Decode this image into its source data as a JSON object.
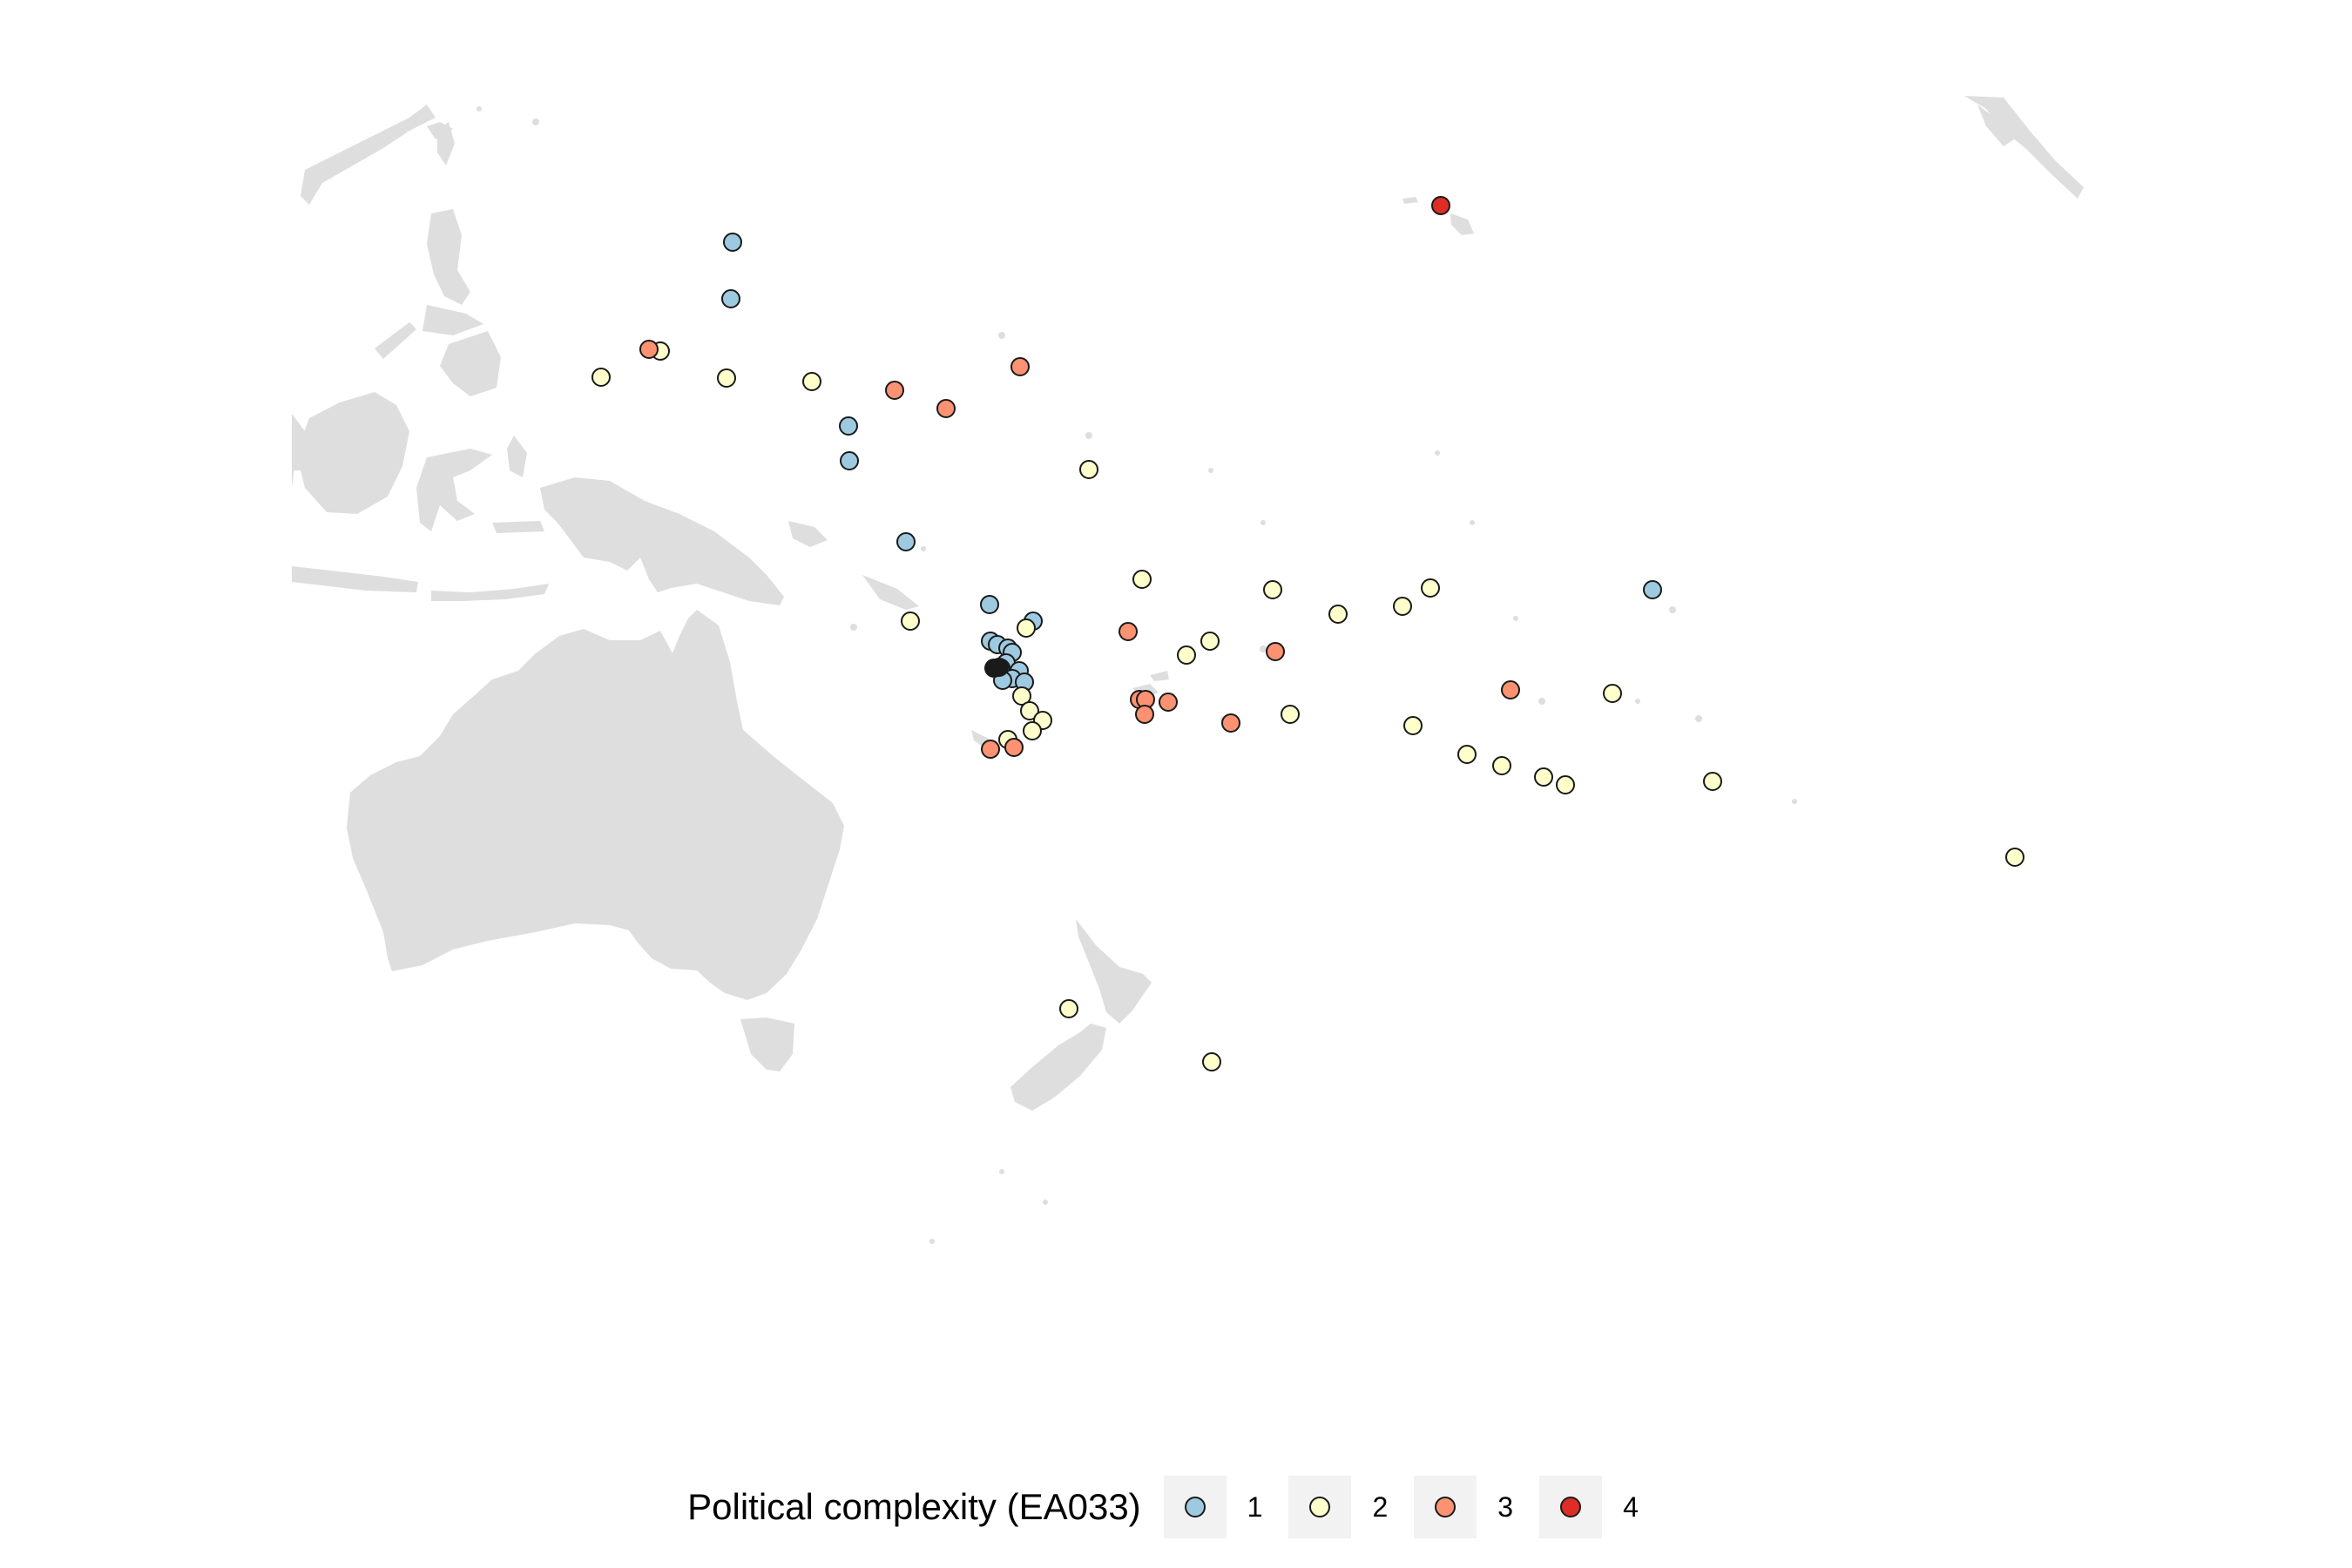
{
  "legend": {
    "title": "Political complexity (EA033)",
    "items": [
      {
        "label": "1",
        "color": "#9ecae1"
      },
      {
        "label": "2",
        "color": "#ffffcc"
      },
      {
        "label": "3",
        "color": "#fc9272"
      },
      {
        "label": "4",
        "color": "#de2d26"
      }
    ]
  },
  "chart_data": {
    "type": "scatter",
    "title": "",
    "xlabel": "",
    "ylabel": "",
    "basemap": "Australia, New Guinea, Indonesia, Philippines, Japan, New Zealand, Pacific islands, Alaska",
    "grid": false,
    "legend_position": "bottom",
    "series": [
      {
        "name": "1",
        "color": "#9ecae1",
        "points": [
          [
            841,
            278
          ],
          [
            839,
            343
          ],
          [
            974,
            489
          ],
          [
            975,
            529
          ],
          [
            1040,
            622
          ],
          [
            1136,
            694
          ],
          [
            1186,
            713
          ],
          [
            1137,
            736
          ],
          [
            1145,
            740
          ],
          [
            1157,
            744
          ],
          [
            1162,
            749
          ],
          [
            1155,
            761
          ],
          [
            1170,
            770
          ],
          [
            1149,
            767
          ],
          [
            1162,
            779
          ],
          [
            1176,
            783
          ],
          [
            1151,
            781
          ],
          [
            1897,
            677
          ]
        ]
      },
      {
        "name": "2",
        "color": "#ffffcc",
        "points": [
          [
            690,
            433
          ],
          [
            758,
            403
          ],
          [
            834,
            434
          ],
          [
            932,
            438
          ],
          [
            1250,
            539
          ],
          [
            1311,
            665
          ],
          [
            1045,
            713
          ],
          [
            1178,
            721
          ],
          [
            1362,
            752
          ],
          [
            1389,
            736
          ],
          [
            1461,
            677
          ],
          [
            1536,
            705
          ],
          [
            1610,
            696
          ],
          [
            1642,
            675
          ],
          [
            1173,
            799
          ],
          [
            1182,
            816
          ],
          [
            1197,
            827
          ],
          [
            1185,
            839
          ],
          [
            1157,
            849
          ],
          [
            1481,
            820
          ],
          [
            1622,
            833
          ],
          [
            1684,
            866
          ],
          [
            1724,
            879
          ],
          [
            1772,
            892
          ],
          [
            1797,
            901
          ],
          [
            1851,
            796
          ],
          [
            1966,
            897
          ],
          [
            2313,
            984
          ],
          [
            1227,
            1158
          ],
          [
            1391,
            1219
          ]
        ]
      },
      {
        "name": "3",
        "color": "#fc9272",
        "points": [
          [
            745,
            401
          ],
          [
            1171,
            421
          ],
          [
            1027,
            448
          ],
          [
            1086,
            469
          ],
          [
            1295,
            725
          ],
          [
            1464,
            748
          ],
          [
            1308,
            803
          ],
          [
            1315,
            803
          ],
          [
            1314,
            820
          ],
          [
            1341,
            806
          ],
          [
            1413,
            830
          ],
          [
            1734,
            792
          ],
          [
            1137,
            860
          ],
          [
            1164,
            858
          ]
        ]
      },
      {
        "name": "4",
        "color": "#de2d26",
        "points": [
          [
            1654,
            236
          ]
        ]
      },
      {
        "name": "",
        "color": "#1a1a1a",
        "points": [
          [
            1141,
            767
          ],
          [
            1147,
            766
          ]
        ]
      }
    ]
  }
}
